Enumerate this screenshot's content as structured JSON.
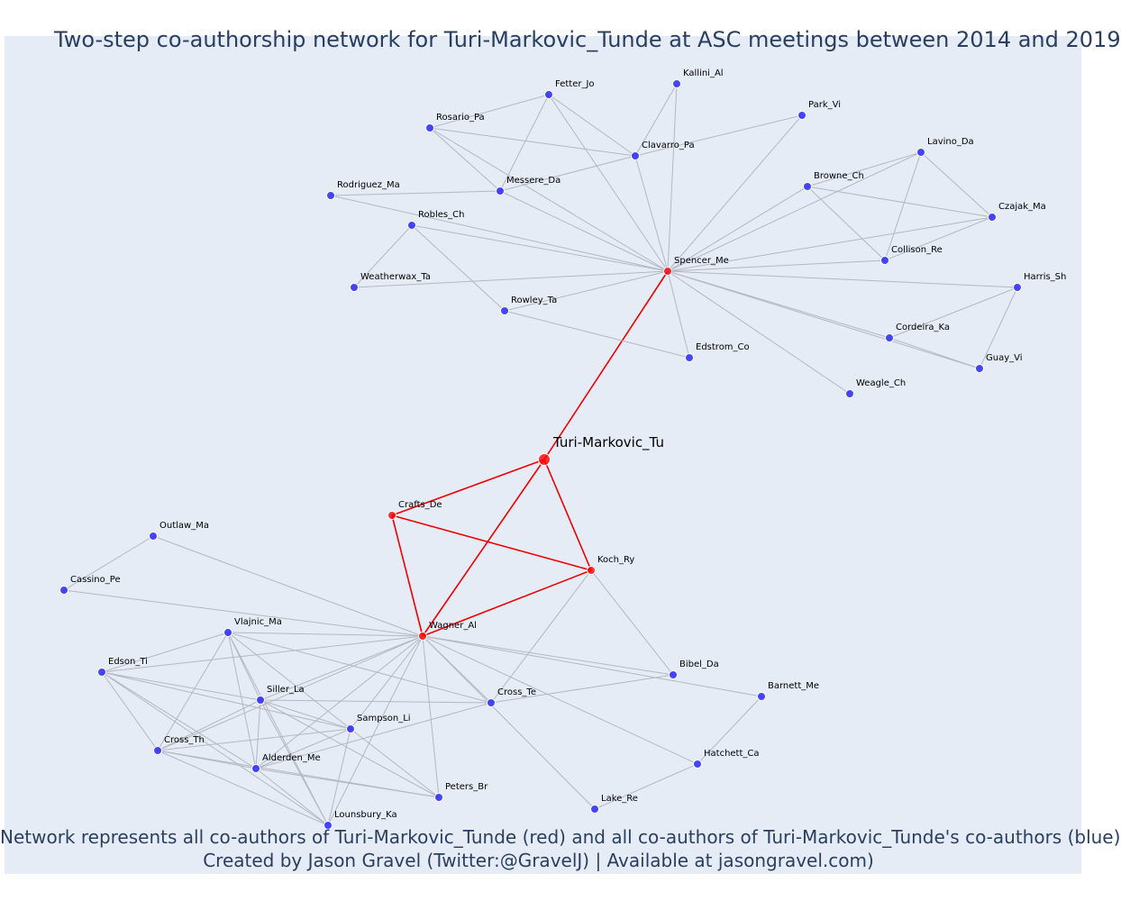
{
  "title": "Two-step co-authorship network for Turi-Markovic_Tunde at ASC meetings between 2014 and 2019",
  "caption_line1": "Network represents all co-authors of Turi-Markovic_Tunde (red) and all co-authors of Turi-Markovic_Tunde's co-authors (blue)",
  "caption_line2": "Created by Jason Gravel (Twitter:@GravelJ) | Available at jasongravel.com)",
  "colors": {
    "background": "#e5ecf6",
    "focal_and_coauthor": "#ff0000",
    "second_step": "#3333ff",
    "edge_gray": "#b5b7c3",
    "edge_red": "#ee0000",
    "title_text": "#2a3f5f"
  },
  "nodes": [
    {
      "id": "Turi-Markovic_Tu",
      "group": "focal"
    },
    {
      "id": "Spencer_Me",
      "group": "coauthor"
    },
    {
      "id": "Crafts_De",
      "group": "coauthor"
    },
    {
      "id": "Koch_Ry",
      "group": "coauthor"
    },
    {
      "id": "Wagner_Al",
      "group": "coauthor"
    },
    {
      "id": "Fetter_Jo",
      "group": "second"
    },
    {
      "id": "Kallini_Al",
      "group": "second"
    },
    {
      "id": "Park_Vi",
      "group": "second"
    },
    {
      "id": "Rosario_Pa",
      "group": "second"
    },
    {
      "id": "Clavarro_Pa",
      "group": "second"
    },
    {
      "id": "Lavino_Da",
      "group": "second"
    },
    {
      "id": "Rodriguez_Ma",
      "group": "second"
    },
    {
      "id": "Messere_Da",
      "group": "second"
    },
    {
      "id": "Browne_Ch",
      "group": "second"
    },
    {
      "id": "Czajak_Ma",
      "group": "second"
    },
    {
      "id": "Robles_Ch",
      "group": "second"
    },
    {
      "id": "Collison_Re",
      "group": "second"
    },
    {
      "id": "Weatherwax_Ta",
      "group": "second"
    },
    {
      "id": "Harris_Sh",
      "group": "second"
    },
    {
      "id": "Rowley_Ta",
      "group": "second"
    },
    {
      "id": "Cordeira_Ka",
      "group": "second"
    },
    {
      "id": "Edstrom_Co",
      "group": "second"
    },
    {
      "id": "Guay_Vi",
      "group": "second"
    },
    {
      "id": "Weagle_Ch",
      "group": "second"
    },
    {
      "id": "Outlaw_Ma",
      "group": "second"
    },
    {
      "id": "Cassino_Pe",
      "group": "second"
    },
    {
      "id": "Vlajnic_Ma",
      "group": "second"
    },
    {
      "id": "Edson_Ti",
      "group": "second"
    },
    {
      "id": "Bibel_Da",
      "group": "second"
    },
    {
      "id": "Siller_La",
      "group": "second"
    },
    {
      "id": "Cross_Te",
      "group": "second"
    },
    {
      "id": "Barnett_Me",
      "group": "second"
    },
    {
      "id": "Sampson_Li",
      "group": "second"
    },
    {
      "id": "Cross_Th",
      "group": "second"
    },
    {
      "id": "Alderden_Me",
      "group": "second"
    },
    {
      "id": "Hatchett_Ca",
      "group": "second"
    },
    {
      "id": "Peters_Br",
      "group": "second"
    },
    {
      "id": "Lake_Re",
      "group": "second"
    },
    {
      "id": "Lounsbury_Ka",
      "group": "second"
    }
  ],
  "edges": [
    [
      "Turi-Markovic_Tu",
      "Spencer_Me"
    ],
    [
      "Turi-Markovic_Tu",
      "Crafts_De"
    ],
    [
      "Turi-Markovic_Tu",
      "Koch_Ry"
    ],
    [
      "Turi-Markovic_Tu",
      "Wagner_Al"
    ],
    [
      "Crafts_De",
      "Koch_Ry"
    ],
    [
      "Crafts_De",
      "Wagner_Al"
    ],
    [
      "Koch_Ry",
      "Wagner_Al"
    ],
    [
      "Spencer_Me",
      "Fetter_Jo"
    ],
    [
      "Spencer_Me",
      "Kallini_Al"
    ],
    [
      "Spencer_Me",
      "Park_Vi"
    ],
    [
      "Spencer_Me",
      "Rosario_Pa"
    ],
    [
      "Spencer_Me",
      "Clavarro_Pa"
    ],
    [
      "Spencer_Me",
      "Lavino_Da"
    ],
    [
      "Spencer_Me",
      "Messere_Da"
    ],
    [
      "Spencer_Me",
      "Browne_Ch"
    ],
    [
      "Spencer_Me",
      "Czajak_Ma"
    ],
    [
      "Spencer_Me",
      "Robles_Ch"
    ],
    [
      "Spencer_Me",
      "Collison_Re"
    ],
    [
      "Spencer_Me",
      "Weatherwax_Ta"
    ],
    [
      "Spencer_Me",
      "Harris_Sh"
    ],
    [
      "Spencer_Me",
      "Rowley_Ta"
    ],
    [
      "Spencer_Me",
      "Cordeira_Ka"
    ],
    [
      "Spencer_Me",
      "Edstrom_Co"
    ],
    [
      "Spencer_Me",
      "Guay_Vi"
    ],
    [
      "Spencer_Me",
      "Weagle_Ch"
    ],
    [
      "Fetter_Jo",
      "Rosario_Pa"
    ],
    [
      "Fetter_Jo",
      "Clavarro_Pa"
    ],
    [
      "Fetter_Jo",
      "Messere_Da"
    ],
    [
      "Kallini_Al",
      "Clavarro_Pa"
    ],
    [
      "Park_Vi",
      "Clavarro_Pa"
    ],
    [
      "Rosario_Pa",
      "Clavarro_Pa"
    ],
    [
      "Rosario_Pa",
      "Messere_Da"
    ],
    [
      "Clavarro_Pa",
      "Messere_Da"
    ],
    [
      "Rodriguez_Ma",
      "Messere_Da"
    ],
    [
      "Rodriguez_Ma",
      "Spencer_Me"
    ],
    [
      "Lavino_Da",
      "Browne_Ch"
    ],
    [
      "Lavino_Da",
      "Czajak_Ma"
    ],
    [
      "Lavino_Da",
      "Collison_Re"
    ],
    [
      "Browne_Ch",
      "Czajak_Ma"
    ],
    [
      "Browne_Ch",
      "Collison_Re"
    ],
    [
      "Czajak_Ma",
      "Collison_Re"
    ],
    [
      "Robles_Ch",
      "Weatherwax_Ta"
    ],
    [
      "Robles_Ch",
      "Rowley_Ta"
    ],
    [
      "Rowley_Ta",
      "Edstrom_Co"
    ],
    [
      "Harris_Sh",
      "Cordeira_Ka"
    ],
    [
      "Harris_Sh",
      "Guay_Vi"
    ],
    [
      "Cordeira_Ka",
      "Guay_Vi"
    ],
    [
      "Wagner_Al",
      "Outlaw_Ma"
    ],
    [
      "Wagner_Al",
      "Cassino_Pe"
    ],
    [
      "Wagner_Al",
      "Vlajnic_Ma"
    ],
    [
      "Wagner_Al",
      "Edson_Ti"
    ],
    [
      "Wagner_Al",
      "Bibel_Da"
    ],
    [
      "Wagner_Al",
      "Siller_La"
    ],
    [
      "Wagner_Al",
      "Cross_Te"
    ],
    [
      "Wagner_Al",
      "Barnett_Me"
    ],
    [
      "Wagner_Al",
      "Sampson_Li"
    ],
    [
      "Wagner_Al",
      "Cross_Th"
    ],
    [
      "Wagner_Al",
      "Alderden_Me"
    ],
    [
      "Wagner_Al",
      "Hatchett_Ca"
    ],
    [
      "Wagner_Al",
      "Peters_Br"
    ],
    [
      "Wagner_Al",
      "Lake_Re"
    ],
    [
      "Wagner_Al",
      "Lounsbury_Ka"
    ],
    [
      "Outlaw_Ma",
      "Cassino_Pe"
    ],
    [
      "Koch_Ry",
      "Bibel_Da"
    ],
    [
      "Koch_Ry",
      "Cross_Te"
    ],
    [
      "Vlajnic_Ma",
      "Edson_Ti"
    ],
    [
      "Vlajnic_Ma",
      "Siller_La"
    ],
    [
      "Vlajnic_Ma",
      "Cross_Th"
    ],
    [
      "Vlajnic_Ma",
      "Alderden_Me"
    ],
    [
      "Vlajnic_Ma",
      "Sampson_Li"
    ],
    [
      "Vlajnic_Ma",
      "Lounsbury_Ka"
    ],
    [
      "Vlajnic_Ma",
      "Cross_Te"
    ],
    [
      "Edson_Ti",
      "Siller_La"
    ],
    [
      "Edson_Ti",
      "Sampson_Li"
    ],
    [
      "Edson_Ti",
      "Cross_Th"
    ],
    [
      "Edson_Ti",
      "Alderden_Me"
    ],
    [
      "Edson_Ti",
      "Lounsbury_Ka"
    ],
    [
      "Siller_La",
      "Sampson_Li"
    ],
    [
      "Siller_La",
      "Cross_Th"
    ],
    [
      "Siller_La",
      "Alderden_Me"
    ],
    [
      "Siller_La",
      "Peters_Br"
    ],
    [
      "Siller_La",
      "Lounsbury_Ka"
    ],
    [
      "Siller_La",
      "Cross_Te"
    ],
    [
      "Sampson_Li",
      "Cross_Th"
    ],
    [
      "Sampson_Li",
      "Alderden_Me"
    ],
    [
      "Sampson_Li",
      "Peters_Br"
    ],
    [
      "Sampson_Li",
      "Lounsbury_Ka"
    ],
    [
      "Cross_Th",
      "Alderden_Me"
    ],
    [
      "Cross_Th",
      "Peters_Br"
    ],
    [
      "Cross_Th",
      "Lounsbury_Ka"
    ],
    [
      "Alderden_Me",
      "Peters_Br"
    ],
    [
      "Alderden_Me",
      "Lounsbury_Ka"
    ],
    [
      "Alderden_Me",
      "Cross_Te"
    ],
    [
      "Cross_Te",
      "Bibel_Da"
    ],
    [
      "Barnett_Me",
      "Hatchett_Ca"
    ],
    [
      "Hatchett_Ca",
      "Lake_Re"
    ]
  ]
}
